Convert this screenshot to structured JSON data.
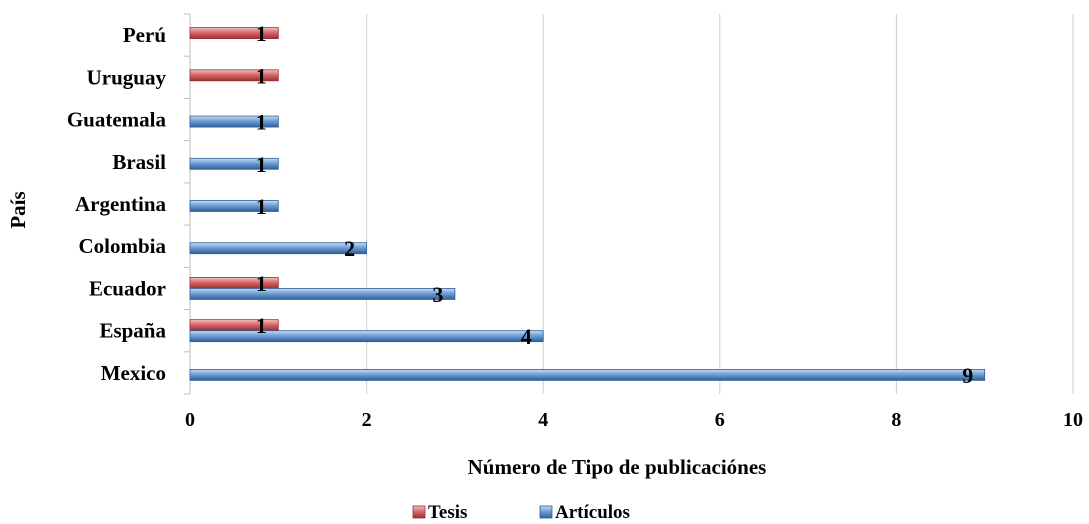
{
  "chart_data": {
    "type": "bar",
    "orientation": "horizontal",
    "categories": [
      "Mexico",
      "España",
      "Ecuador",
      "Colombia",
      "Argentina",
      "Brasil",
      "Guatemala",
      "Uruguay",
      "Perú"
    ],
    "series": [
      {
        "name": "Artículos",
        "color": "#5b9bd5",
        "values": [
          9,
          4,
          3,
          2,
          1,
          1,
          1,
          null,
          null
        ]
      },
      {
        "name": "Tesis",
        "color": "#e06666",
        "values": [
          null,
          1,
          1,
          null,
          null,
          null,
          null,
          1,
          1
        ]
      }
    ],
    "xlabel": "Número de Tipo de publicaciónes",
    "ylabel": "País",
    "xlim": [
      0,
      10
    ],
    "xticks": [
      "0",
      "2",
      "4",
      "6",
      "8",
      "10"
    ],
    "grid": true,
    "legend": {
      "placement": "bottom",
      "entries": [
        "Tesis",
        "Artículos"
      ]
    },
    "data_labels": true
  }
}
